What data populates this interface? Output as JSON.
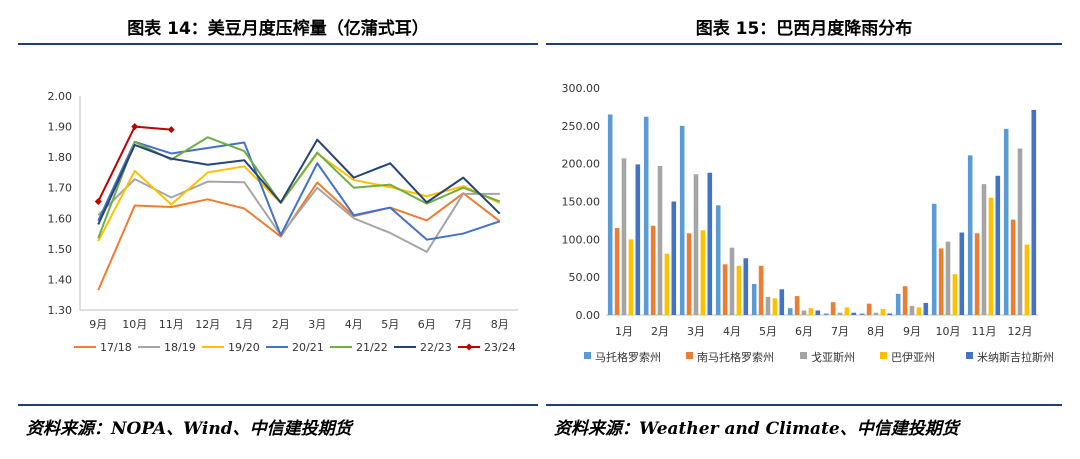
{
  "left_panel": {
    "title": "图表 14：美豆月度压榨量（亿蒲式耳）",
    "source": "资料来源：NOPA、Wind、中信建投期货"
  },
  "right_panel": {
    "title": "图表 15：巴西月度降雨分布",
    "source": "资料来源：Weather and Climate、中信建投期货"
  },
  "chart_data": [
    {
      "type": "line",
      "title": "图表 14：美豆月度压榨量（亿蒲式耳）",
      "categories": [
        "9月",
        "10月",
        "11月",
        "12月",
        "1月",
        "2月",
        "3月",
        "4月",
        "5月",
        "6月",
        "7月",
        "8月"
      ],
      "ylim": [
        1.3,
        2.0
      ],
      "yticks": [
        "1.30",
        "1.40",
        "1.50",
        "1.60",
        "1.70",
        "1.80",
        "1.90",
        "2.00"
      ],
      "legend_position": "bottom",
      "grid": false,
      "series": [
        {
          "name": "17/18",
          "color": "#ED7D31",
          "marker": false,
          "values": [
            1.365,
            1.642,
            1.637,
            1.662,
            1.632,
            1.54,
            1.717,
            1.607,
            1.635,
            1.593,
            1.682,
            1.59
          ]
        },
        {
          "name": "18/19",
          "color": "#A5A5A5",
          "marker": false,
          "values": [
            1.61,
            1.728,
            1.668,
            1.72,
            1.718,
            1.545,
            1.7,
            1.6,
            1.552,
            1.49,
            1.68,
            1.68
          ]
        },
        {
          "name": "19/20",
          "color": "#FFC000",
          "marker": false,
          "values": [
            1.525,
            1.755,
            1.645,
            1.75,
            1.77,
            1.65,
            1.812,
            1.725,
            1.702,
            1.672,
            1.705,
            1.65
          ]
        },
        {
          "name": "20/21",
          "color": "#4472C4",
          "marker": false,
          "values": [
            1.592,
            1.85,
            1.812,
            1.83,
            1.848,
            1.545,
            1.78,
            1.61,
            1.635,
            1.53,
            1.55,
            1.59
          ]
        },
        {
          "name": "21/22",
          "color": "#70AD47",
          "marker": false,
          "values": [
            1.535,
            1.85,
            1.792,
            1.865,
            1.82,
            1.65,
            1.815,
            1.7,
            1.71,
            1.648,
            1.7,
            1.655
          ]
        },
        {
          "name": "22/23",
          "color": "#264478",
          "marker": false,
          "values": [
            1.58,
            1.84,
            1.795,
            1.775,
            1.79,
            1.652,
            1.857,
            1.733,
            1.78,
            1.652,
            1.733,
            1.615
          ]
        },
        {
          "name": "23/24",
          "color": "#C00000",
          "marker": true,
          "values": [
            1.655,
            1.9,
            1.89,
            null,
            null,
            null,
            null,
            null,
            null,
            null,
            null,
            null
          ]
        }
      ]
    },
    {
      "type": "bar",
      "title": "图表 15：巴西月度降雨分布",
      "categories": [
        "1月",
        "2月",
        "3月",
        "4月",
        "5月",
        "6月",
        "7月",
        "8月",
        "9月",
        "10月",
        "11月",
        "12月"
      ],
      "ylim": [
        0,
        300
      ],
      "yticks": [
        "0.00",
        "50.00",
        "100.00",
        "150.00",
        "200.00",
        "250.00",
        "300.00"
      ],
      "legend_position": "bottom",
      "grid": false,
      "series": [
        {
          "name": "马托格罗索州",
          "color": "#5B9BD5",
          "values": [
            265,
            262,
            250,
            145,
            41,
            9,
            2,
            2,
            28,
            147,
            211,
            246
          ]
        },
        {
          "name": "南马托格罗索州",
          "color": "#ED7D31",
          "values": [
            115,
            118,
            108,
            67,
            65,
            25,
            17,
            15,
            38,
            88,
            108,
            126
          ]
        },
        {
          "name": "戈亚斯州",
          "color": "#A5A5A5",
          "values": [
            207,
            197,
            186,
            89,
            24,
            6,
            3,
            3,
            12,
            97,
            173,
            220
          ]
        },
        {
          "name": "巴伊亚州",
          "color": "#FFC000",
          "values": [
            100,
            81,
            112,
            65,
            22,
            9,
            10,
            8,
            10,
            54,
            155,
            93
          ]
        },
        {
          "name": "米纳斯吉拉斯州",
          "color": "#4472C4",
          "values": [
            199,
            150,
            188,
            75,
            34,
            6,
            3,
            2,
            16,
            109,
            184,
            271
          ]
        }
      ]
    }
  ]
}
